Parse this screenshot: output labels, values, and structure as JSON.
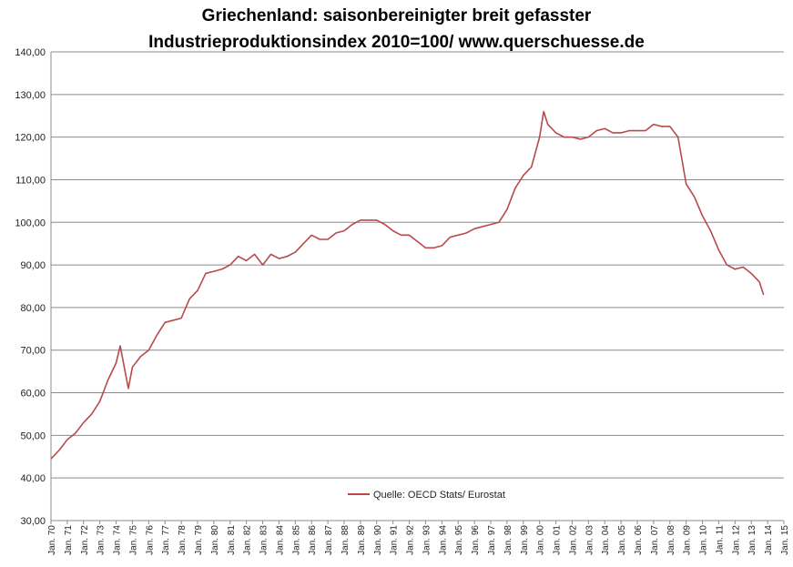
{
  "chart_data": {
    "type": "line",
    "title_line1": "Griechenland: saisonbereinigter breit gefasster",
    "title_line2": "Industrieproduktionsindex 2010=100/ www.querschuesse.de",
    "xlabel": "",
    "ylabel": "",
    "ylim": [
      30,
      140
    ],
    "y_ticks": [
      "30,00",
      "40,00",
      "50,00",
      "60,00",
      "70,00",
      "80,00",
      "90,00",
      "100,00",
      "110,00",
      "120,00",
      "130,00",
      "140,00"
    ],
    "x_ticks": [
      "Jan. 70",
      "Jan. 71",
      "Jan. 72",
      "Jan. 73",
      "Jan. 74",
      "Jan. 75",
      "Jan. 76",
      "Jan. 77",
      "Jan. 78",
      "Jan. 79",
      "Jan. 80",
      "Jan. 81",
      "Jan. 82",
      "Jan. 83",
      "Jan. 84",
      "Jan. 85",
      "Jan. 86",
      "Jan. 87",
      "Jan. 88",
      "Jan. 89",
      "Jan. 90",
      "Jan. 91",
      "Jan. 92",
      "Jan. 93",
      "Jan. 94",
      "Jan. 95",
      "Jan. 96",
      "Jan. 97",
      "Jan. 98",
      "Jan. 99",
      "Jan. 00",
      "Jan. 01",
      "Jan. 02",
      "Jan. 03",
      "Jan. 04",
      "Jan. 05",
      "Jan. 06",
      "Jan. 07",
      "Jan. 08",
      "Jan. 09",
      "Jan. 10",
      "Jan. 11",
      "Jan. 12",
      "Jan. 13",
      "Jan. 14",
      "Jan. 15"
    ],
    "x_start_year": 1970,
    "x_end_year": 2015,
    "grid": true,
    "legend_position": "bottom-center",
    "series": [
      {
        "name": "Quelle: OECD Stats/ Eurostat",
        "color": "#b84a48",
        "x": [
          "Jan. 70",
          "Jul. 70",
          "Jan. 71",
          "Jul. 71",
          "Jan. 72",
          "Jul. 72",
          "Jan. 73",
          "Jul. 73",
          "Jan. 74",
          "Apr. 74",
          "Jul. 74",
          "Oct. 74",
          "Jan. 75",
          "Jul. 75",
          "Jan. 76",
          "Jul. 76",
          "Jan. 77",
          "Jul. 77",
          "Jan. 78",
          "Jul. 78",
          "Jan. 79",
          "Jul. 79",
          "Jan. 80",
          "Jul. 80",
          "Jan. 81",
          "Jul. 81",
          "Jan. 82",
          "Jul. 82",
          "Jan. 83",
          "Jul. 83",
          "Jan. 84",
          "Jul. 84",
          "Jan. 85",
          "Jul. 85",
          "Jan. 86",
          "Jul. 86",
          "Jan. 87",
          "Jul. 87",
          "Jan. 88",
          "Jul. 88",
          "Jan. 89",
          "Jul. 89",
          "Jan. 90",
          "Jul. 90",
          "Jan. 91",
          "Jul. 91",
          "Jan. 92",
          "Jul. 92",
          "Jan. 93",
          "Jul. 93",
          "Jan. 94",
          "Jul. 94",
          "Jan. 95",
          "Jul. 95",
          "Jan. 96",
          "Jul. 96",
          "Jan. 97",
          "Jul. 97",
          "Jan. 98",
          "Jul. 98",
          "Jan. 99",
          "Jul. 99",
          "Jan. 00",
          "Apr. 00",
          "Jul. 00",
          "Jan. 01",
          "Jul. 01",
          "Jan. 02",
          "Jul. 02",
          "Jan. 03",
          "Jul. 03",
          "Jan. 04",
          "Jul. 04",
          "Jan. 05",
          "Jul. 05",
          "Jan. 06",
          "Jul. 06",
          "Jan. 07",
          "Jul. 07",
          "Jan. 08",
          "Jul. 08",
          "Jan. 09",
          "Jul. 09",
          "Jan. 10",
          "Jul. 10",
          "Jan. 11",
          "Jul. 11",
          "Jan. 12",
          "Jul. 12",
          "Jan. 13",
          "Jul. 13",
          "Oct. 13"
        ],
        "values": [
          44.5,
          46.5,
          49,
          50.5,
          53,
          55,
          58,
          63,
          67,
          71,
          66,
          61,
          66,
          68.5,
          70,
          73.5,
          76.5,
          77,
          77.5,
          82,
          84,
          88,
          88.5,
          89,
          90,
          92,
          91,
          92.5,
          90,
          92.5,
          91.5,
          92,
          93,
          95,
          97,
          96,
          96,
          97.5,
          98,
          99.5,
          100.5,
          100.5,
          100.5,
          99.5,
          98,
          97,
          97,
          95.5,
          94,
          94,
          94.5,
          96.5,
          97,
          97.5,
          98.5,
          99,
          99.5,
          100,
          103,
          108,
          111,
          113,
          120,
          126,
          123,
          121,
          120,
          120,
          119.5,
          120,
          121.5,
          122,
          121,
          121,
          121.5,
          121.5,
          121.5,
          123,
          122.5,
          122.5,
          120,
          109,
          106,
          101.5,
          98,
          93.5,
          90,
          89,
          89.5,
          88,
          86,
          83
        ]
      }
    ]
  }
}
